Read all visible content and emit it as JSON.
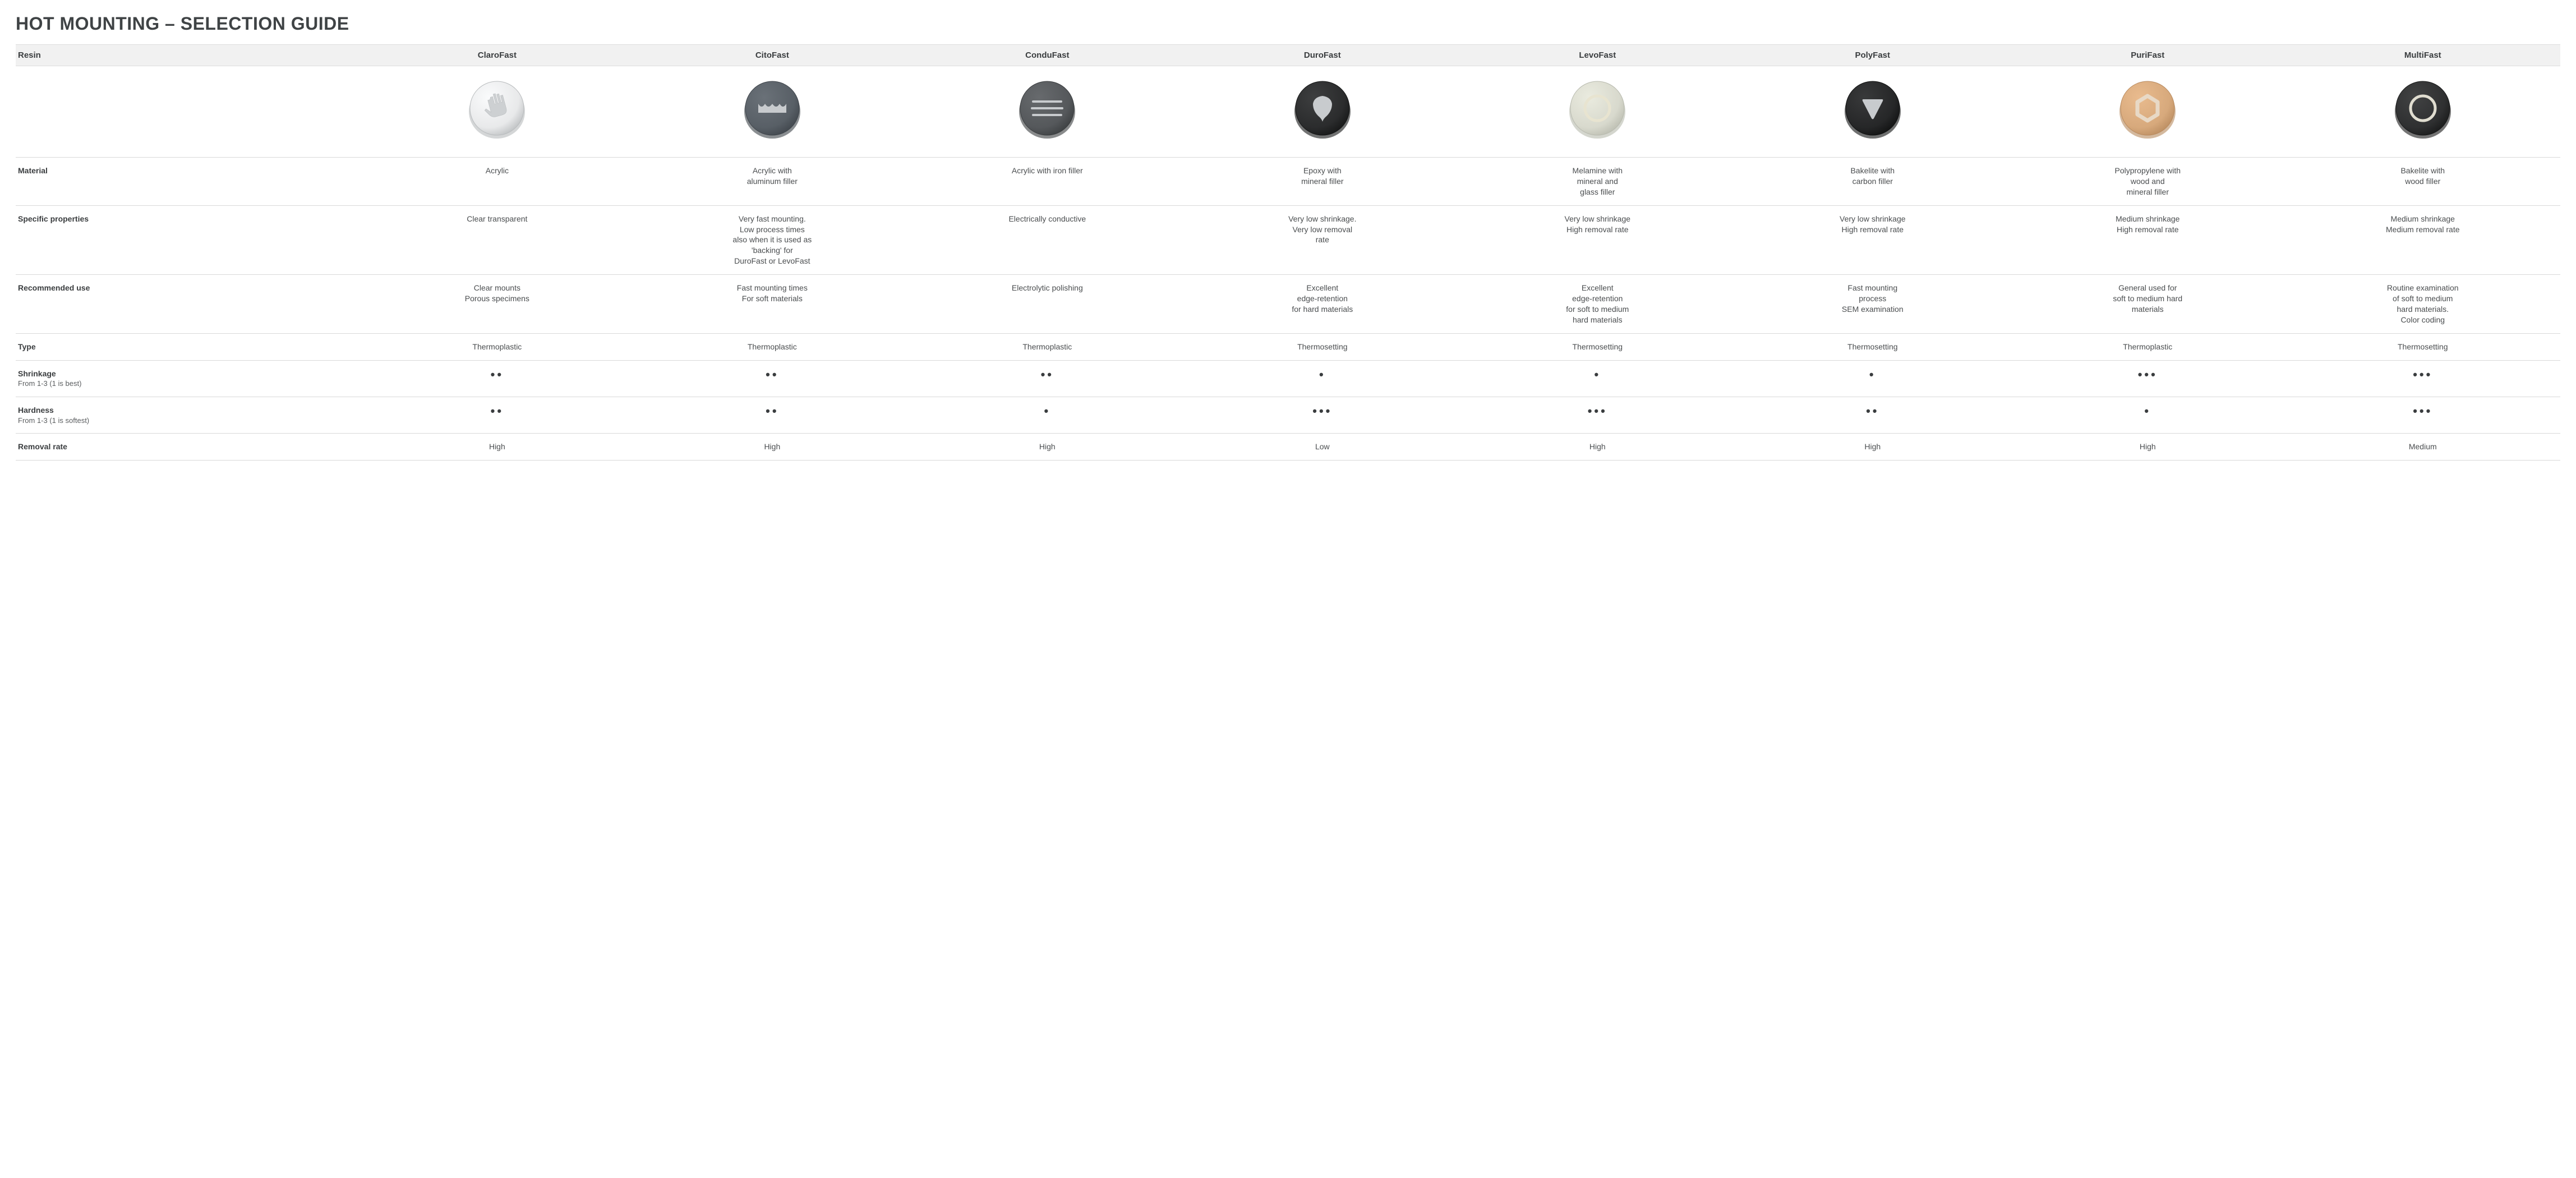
{
  "title": "HOT MOUNTING – SELECTION GUIDE",
  "header_label": "Resin",
  "row_labels": {
    "material": "Material",
    "specific": "Specific properties",
    "recommended": "Recommended use",
    "type": "Type",
    "shrinkage": "Shrinkage",
    "shrinkage_sub": "From 1-3 (1 is best)",
    "hardness": "Hardness",
    "hardness_sub": "From 1-3 (1 is softest)",
    "removal": "Removal rate"
  },
  "products": [
    {
      "name": "ClaroFast",
      "icon": "hand",
      "puck_fill": "#e8e9ea",
      "puck_edge": "#b8bbbd",
      "symbol_fill": "#cdd0d2",
      "material": "Acrylic",
      "specific": "Clear transparent",
      "recommended": "Clear mounts\nPorous specimens",
      "type": "Thermoplastic",
      "shrinkage_dots": 2,
      "hardness_dots": 2,
      "removal": "High"
    },
    {
      "name": "CitoFast",
      "icon": "crown",
      "puck_fill": "#585f66",
      "puck_edge": "#3e444a",
      "symbol_fill": "#c8cbce",
      "material": "Acrylic with\naluminum filler",
      "specific": "Very fast mounting.\nLow process times\nalso when it is used as\n'backing' for\nDuroFast or LevoFast",
      "recommended": "Fast mounting times\nFor soft materials",
      "type": "Thermoplastic",
      "shrinkage_dots": 2,
      "hardness_dots": 2,
      "removal": "High"
    },
    {
      "name": "ConduFast",
      "icon": "lines",
      "puck_fill": "#55585b",
      "puck_edge": "#3a3d3f",
      "symbol_fill": "#c8cbce",
      "material": "Acrylic with iron filler",
      "specific": "Electrically conductive",
      "recommended": "Electrolytic polishing",
      "type": "Thermoplastic",
      "shrinkage_dots": 2,
      "hardness_dots": 1,
      "removal": "High"
    },
    {
      "name": "DuroFast",
      "icon": "shield",
      "puck_fill": "#2b2c2d",
      "puck_edge": "#141515",
      "symbol_fill": "#c8cbce",
      "material": "Epoxy with\nmineral filler",
      "specific": "Very low shrinkage.\nVery low removal\nrate",
      "recommended": "Excellent\nedge-retention\nfor hard materials",
      "type": "Thermosetting",
      "shrinkage_dots": 1,
      "hardness_dots": 3,
      "removal": "Low"
    },
    {
      "name": "LevoFast",
      "icon": "ring",
      "puck_fill": "#d8d9cd",
      "puck_edge": "#b8baae",
      "symbol_fill": "#c4c6ba",
      "ring_stroke": "#e8e4d0",
      "material": "Melamine with\nmineral and\nglass filler",
      "specific": "Very low shrinkage\nHigh removal rate",
      "recommended": "Excellent\nedge-retention\nfor soft to medium\nhard materials",
      "type": "Thermosetting",
      "shrinkage_dots": 1,
      "hardness_dots": 3,
      "removal": "High"
    },
    {
      "name": "PolyFast",
      "icon": "triangle",
      "puck_fill": "#262728",
      "puck_edge": "#0f1010",
      "symbol_fill": "#c8cbce",
      "material": "Bakelite with\ncarbon filler",
      "specific": "Very low shrinkage\nHigh removal rate",
      "recommended": "Fast mounting\nprocess\nSEM examination",
      "type": "Thermosetting",
      "shrinkage_dots": 1,
      "hardness_dots": 2,
      "removal": "High"
    },
    {
      "name": "PuriFast",
      "icon": "hex",
      "puck_fill": "#d7a97c",
      "puck_edge": "#b88a5e",
      "symbol_fill": "#e8d9c6",
      "material": "Polypropylene with\nwood and\nmineral filler",
      "specific": "Medium shrinkage\nHigh removal rate",
      "recommended": "General used for\nsoft to medium hard\nmaterials",
      "type": "Thermoplastic",
      "shrinkage_dots": 3,
      "hardness_dots": 1,
      "removal": "High"
    },
    {
      "name": "MultiFast",
      "icon": "ring",
      "puck_fill": "#2f3031",
      "puck_edge": "#171818",
      "symbol_fill": "#2f3031",
      "ring_stroke": "#e0ddd0",
      "material": "Bakelite with\nwood filler",
      "specific": "Medium shrinkage\nMedium removal rate",
      "recommended": "Routine examination\nof soft to medium\nhard materials.\nColor coding",
      "type": "Thermosetting",
      "shrinkage_dots": 3,
      "hardness_dots": 3,
      "removal": "Medium"
    }
  ],
  "style": {
    "title_color": "#3f4345",
    "header_bg": "#f1f1f1",
    "border_color": "#d9d9d9",
    "text_color": "#4a4d4f",
    "label_color": "#3a3d3f",
    "dot_color": "#3a3d3f"
  }
}
